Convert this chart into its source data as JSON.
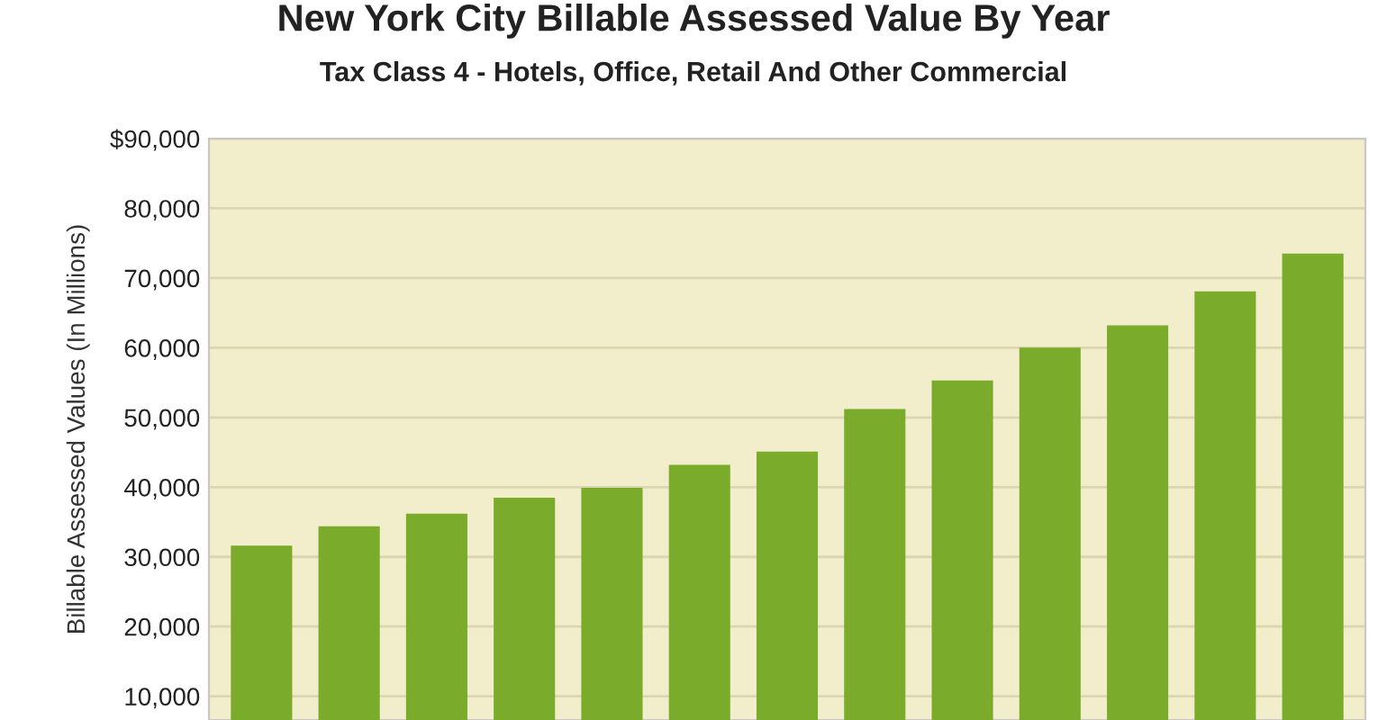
{
  "chart_data": {
    "type": "bar",
    "title": "New York City Billable Assessed Value By Year",
    "subtitle": "Tax Class 4 - Hotels, Office, Retail And Other Commercial",
    "ylabel": "Billable Assessed Values (In Millions)",
    "categories": [
      null,
      null,
      null,
      null,
      null,
      null,
      null,
      null,
      null,
      null,
      null,
      null,
      null
    ],
    "values": [
      31600,
      34400,
      36200,
      38500,
      39900,
      43200,
      45100,
      51200,
      55300,
      60000,
      63200,
      68100,
      73500
    ],
    "color": "#7aab2a",
    "ylim": [
      6600,
      90000
    ],
    "yticks": [
      {
        "value": 10000,
        "label": "10,000"
      },
      {
        "value": 20000,
        "label": "20,000"
      },
      {
        "value": 30000,
        "label": "30,000"
      },
      {
        "value": 40000,
        "label": "40,000"
      },
      {
        "value": 50000,
        "label": "50,000"
      },
      {
        "value": 60000,
        "label": "60,000"
      },
      {
        "value": 70000,
        "label": "70,000"
      },
      {
        "value": 80000,
        "label": "80,000"
      },
      {
        "value": 90000,
        "label": "$90,000"
      }
    ],
    "grid": "y"
  }
}
